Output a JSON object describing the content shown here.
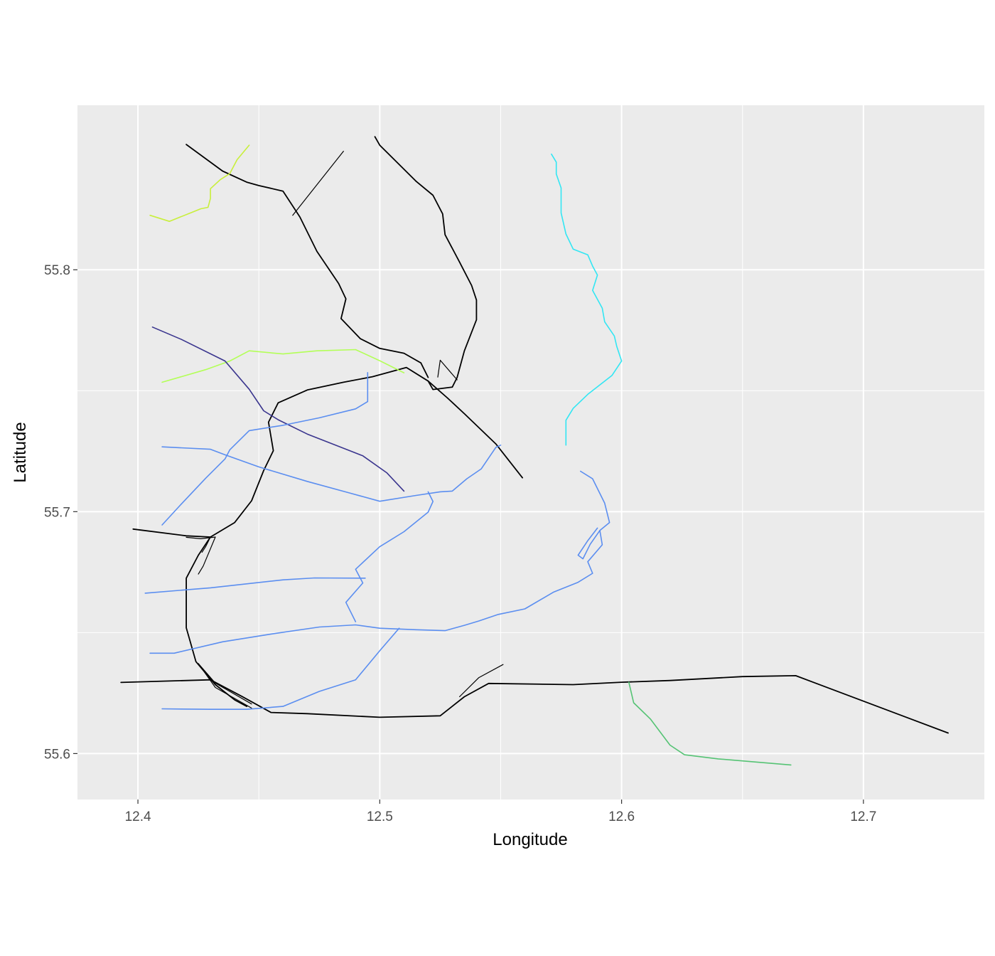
{
  "axes": {
    "xlabel": "Longitude",
    "ylabel": "Latitude",
    "x_ticks": [
      {
        "value": 12.4,
        "label": "12.4"
      },
      {
        "value": 12.5,
        "label": "12.5"
      },
      {
        "value": 12.6,
        "label": "12.6"
      },
      {
        "value": 12.7,
        "label": "12.7"
      }
    ],
    "y_ticks": [
      {
        "value": 55.6,
        "label": "55.6"
      },
      {
        "value": 55.7,
        "label": "55.7"
      },
      {
        "value": 55.8,
        "label": "55.8"
      }
    ],
    "x_minor": [
      12.45,
      12.55,
      12.65
    ],
    "y_minor": [
      55.65,
      55.75
    ],
    "xlim": [
      12.375,
      12.75
    ],
    "ylim": [
      55.581,
      55.868
    ],
    "grid": true,
    "panel_color": "#ebebeb",
    "grid_color": "#ffffff"
  },
  "routes": [
    {
      "color": "#000000",
      "width": 1.8,
      "points": [
        [
          12.393,
          55.6294
        ],
        [
          12.43,
          55.6305
        ],
        [
          12.443,
          55.6236
        ],
        [
          12.455,
          55.617
        ],
        [
          12.47,
          55.6165
        ],
        [
          12.5,
          55.615
        ],
        [
          12.525,
          55.6156
        ],
        [
          12.535,
          55.6235
        ],
        [
          12.545,
          55.629
        ],
        [
          12.58,
          55.6285
        ],
        [
          12.6,
          55.6295
        ],
        [
          12.62,
          55.6302
        ],
        [
          12.65,
          55.6318
        ],
        [
          12.672,
          55.6322
        ],
        [
          12.735,
          55.6085
        ]
      ]
    },
    {
      "color": "#000000",
      "width": 1.2,
      "points": [
        [
          12.533,
          55.6235
        ],
        [
          12.541,
          55.6314
        ],
        [
          12.551,
          55.6368
        ]
      ]
    },
    {
      "color": "#000000",
      "width": 1.8,
      "points": [
        [
          12.398,
          55.6928
        ],
        [
          12.42,
          55.69
        ],
        [
          12.43,
          55.6895
        ],
        [
          12.44,
          55.6955
        ],
        [
          12.447,
          55.7045
        ],
        [
          12.452,
          55.717
        ],
        [
          12.456,
          55.7252
        ],
        [
          12.454,
          55.737
        ],
        [
          12.458,
          55.745
        ],
        [
          12.47,
          55.7503
        ],
        [
          12.485,
          55.7535
        ],
        [
          12.497,
          55.7558
        ],
        [
          12.511,
          55.7596
        ],
        [
          12.52,
          55.754
        ],
        [
          12.528,
          55.747
        ],
        [
          12.535,
          55.7405
        ],
        [
          12.548,
          55.728
        ],
        [
          12.559,
          55.714
        ]
      ]
    },
    {
      "color": "#000000",
      "width": 1.8,
      "points": [
        [
          12.43,
          55.6895
        ],
        [
          12.425,
          55.682
        ],
        [
          12.42,
          55.6725
        ],
        [
          12.42,
          55.652
        ],
        [
          12.424,
          55.638
        ],
        [
          12.432,
          55.6285
        ],
        [
          12.44,
          55.6222
        ],
        [
          12.445,
          55.6195
        ]
      ]
    },
    {
      "color": "#000000",
      "width": 1.8,
      "points": [
        [
          12.498,
          55.855
        ],
        [
          12.5,
          55.8515
        ],
        [
          12.515,
          55.8366
        ],
        [
          12.522,
          55.8308
        ],
        [
          12.526,
          55.8231
        ],
        [
          12.527,
          55.8145
        ],
        [
          12.533,
          55.8032
        ],
        [
          12.538,
          55.7935
        ],
        [
          12.54,
          55.7875
        ],
        [
          12.54,
          55.7793
        ],
        [
          12.535,
          55.7665
        ],
        [
          12.532,
          55.7555
        ],
        [
          12.53,
          55.7515
        ],
        [
          12.522,
          55.7505
        ],
        [
          12.52,
          55.754
        ]
      ]
    },
    {
      "color": "#000000",
      "width": 1.8,
      "points": [
        [
          12.42,
          55.8518
        ],
        [
          12.435,
          55.8408
        ],
        [
          12.445,
          55.8362
        ],
        [
          12.45,
          55.8348
        ],
        [
          12.46,
          55.8325
        ],
        [
          12.467,
          55.8218
        ],
        [
          12.474,
          55.8076
        ],
        [
          12.483,
          55.7943
        ],
        [
          12.486,
          55.788
        ],
        [
          12.484,
          55.7798
        ],
        [
          12.492,
          55.7715
        ],
        [
          12.5,
          55.7675
        ],
        [
          12.51,
          55.7655
        ],
        [
          12.517,
          55.7615
        ],
        [
          12.52,
          55.7555
        ]
      ]
    },
    {
      "color": "#000000",
      "width": 1.2,
      "points": [
        [
          12.464,
          55.8225
        ],
        [
          12.485,
          55.849
        ]
      ]
    },
    {
      "color": "#000000",
      "width": 1.2,
      "points": [
        [
          12.42,
          55.6894
        ],
        [
          12.426,
          55.6888
        ],
        [
          12.432,
          55.6895
        ],
        [
          12.427,
          55.6775
        ],
        [
          12.425,
          55.6742
        ]
      ]
    },
    {
      "color": "#000000",
      "width": 1.2,
      "points": [
        [
          12.43,
          55.6895
        ],
        [
          12.428,
          55.6855
        ],
        [
          12.4265,
          55.6832
        ]
      ]
    },
    {
      "color": "#000000",
      "width": 1.2,
      "points": [
        [
          12.425,
          55.6372
        ],
        [
          12.432,
          55.6291
        ],
        [
          12.447,
          55.6205
        ]
      ]
    },
    {
      "color": "#000000",
      "width": 1.2,
      "points": [
        [
          12.425,
          55.6372
        ],
        [
          12.432,
          55.6273
        ],
        [
          12.447,
          55.6188
        ]
      ]
    },
    {
      "color": "#000000",
      "width": 1.2,
      "points": [
        [
          12.524,
          55.7556
        ],
        [
          12.525,
          55.7626
        ],
        [
          12.532,
          55.7545
        ]
      ]
    },
    {
      "color": "#c8ef3b",
      "width": 1.6,
      "points": [
        [
          12.405,
          55.8225
        ],
        [
          12.413,
          55.82
        ],
        [
          12.422,
          55.8236
        ],
        [
          12.426,
          55.8252
        ],
        [
          12.429,
          55.8258
        ],
        [
          12.43,
          55.8295
        ],
        [
          12.43,
          55.8335
        ],
        [
          12.434,
          55.8372
        ],
        [
          12.438,
          55.8398
        ],
        [
          12.441,
          55.8455
        ],
        [
          12.446,
          55.8515
        ]
      ]
    },
    {
      "color": "#b3ff57",
      "width": 1.6,
      "points": [
        [
          12.41,
          55.7535
        ],
        [
          12.428,
          55.7587
        ],
        [
          12.438,
          55.7623
        ],
        [
          12.446,
          55.7665
        ],
        [
          12.46,
          55.7652
        ],
        [
          12.474,
          55.7665
        ],
        [
          12.49,
          55.767
        ],
        [
          12.5,
          55.7624
        ],
        [
          12.51,
          55.7574
        ]
      ]
    },
    {
      "color": "#3a358e",
      "width": 1.6,
      "points": [
        [
          12.406,
          55.7763
        ],
        [
          12.418,
          55.7712
        ],
        [
          12.436,
          55.7623
        ],
        [
          12.446,
          55.7506
        ],
        [
          12.452,
          55.7417
        ],
        [
          12.458,
          55.738
        ],
        [
          12.47,
          55.7321
        ],
        [
          12.493,
          55.7231
        ],
        [
          12.503,
          55.716
        ],
        [
          12.51,
          55.7085
        ]
      ]
    },
    {
      "color": "#32e6f3",
      "width": 1.6,
      "points": [
        [
          12.571,
          55.8478
        ],
        [
          12.573,
          55.8445
        ],
        [
          12.573,
          55.8396
        ],
        [
          12.575,
          55.8338
        ],
        [
          12.575,
          55.8235
        ],
        [
          12.577,
          55.8148
        ],
        [
          12.58,
          55.8085
        ],
        [
          12.586,
          55.8062
        ],
        [
          12.588,
          55.8015
        ],
        [
          12.59,
          55.7978
        ],
        [
          12.588,
          55.7915
        ],
        [
          12.592,
          55.7841
        ],
        [
          12.593,
          55.7785
        ],
        [
          12.597,
          55.7726
        ],
        [
          12.598,
          55.7683
        ],
        [
          12.6,
          55.7623
        ],
        [
          12.596,
          55.7563
        ],
        [
          12.591,
          55.7524
        ],
        [
          12.586,
          55.7485
        ],
        [
          12.58,
          55.7427
        ],
        [
          12.577,
          55.7378
        ],
        [
          12.577,
          55.7275
        ]
      ]
    },
    {
      "color": "#5b8ef0",
      "width": 1.6,
      "points": [
        [
          12.41,
          55.6945
        ],
        [
          12.418,
          55.7032
        ],
        [
          12.428,
          55.7138
        ],
        [
          12.436,
          55.7218
        ],
        [
          12.438,
          55.7256
        ],
        [
          12.446,
          55.7335
        ],
        [
          12.46,
          55.7357
        ],
        [
          12.475,
          55.7388
        ],
        [
          12.49,
          55.7425
        ],
        [
          12.495,
          55.7455
        ],
        [
          12.495,
          55.7575
        ]
      ]
    },
    {
      "color": "#5b8ef0",
      "width": 1.6,
      "points": [
        [
          12.41,
          55.7268
        ],
        [
          12.43,
          55.7258
        ],
        [
          12.436,
          55.7235
        ],
        [
          12.45,
          55.7185
        ],
        [
          12.47,
          55.7125
        ],
        [
          12.488,
          55.7076
        ],
        [
          12.5,
          55.7043
        ],
        [
          12.515,
          55.7067
        ],
        [
          12.525,
          55.7082
        ],
        [
          12.53,
          55.7085
        ],
        [
          12.536,
          55.7136
        ],
        [
          12.542,
          55.7177
        ],
        [
          12.548,
          55.7266
        ],
        [
          12.55,
          55.7275
        ]
      ]
    },
    {
      "color": "#5b8ef0",
      "width": 1.6,
      "points": [
        [
          12.52,
          55.7082
        ],
        [
          12.522,
          55.7042
        ],
        [
          12.52,
          55.6998
        ],
        [
          12.51,
          55.6917
        ],
        [
          12.5,
          55.6855
        ],
        [
          12.49,
          55.6762
        ],
        [
          12.493,
          55.6705
        ],
        [
          12.486,
          55.6625
        ],
        [
          12.49,
          55.6545
        ]
      ]
    },
    {
      "color": "#5b8ef0",
      "width": 1.6,
      "points": [
        [
          12.403,
          55.6663
        ],
        [
          12.43,
          55.6685
        ],
        [
          12.46,
          55.6718
        ],
        [
          12.473,
          55.6726
        ],
        [
          12.494,
          55.6725
        ]
      ]
    },
    {
      "color": "#5b8ef0",
      "width": 1.6,
      "points": [
        [
          12.405,
          55.6415
        ],
        [
          12.415,
          55.6415
        ],
        [
          12.435,
          55.6462
        ],
        [
          12.455,
          55.6494
        ],
        [
          12.475,
          55.6523
        ],
        [
          12.49,
          55.6532
        ],
        [
          12.5,
          55.6518
        ],
        [
          12.515,
          55.6512
        ],
        [
          12.527,
          55.6508
        ],
        [
          12.535,
          55.653
        ],
        [
          12.541,
          55.6548
        ],
        [
          12.549,
          55.6575
        ],
        [
          12.56,
          55.6598
        ],
        [
          12.572,
          55.6668
        ],
        [
          12.582,
          55.6708
        ],
        [
          12.588,
          55.6745
        ],
        [
          12.586,
          55.6793
        ],
        [
          12.592,
          55.6863
        ],
        [
          12.591,
          55.6922
        ],
        [
          12.595,
          55.6955
        ],
        [
          12.593,
          55.7035
        ],
        [
          12.588,
          55.7136
        ],
        [
          12.583,
          55.7167
        ]
      ]
    },
    {
      "color": "#5b8ef0",
      "width": 1.6,
      "points": [
        [
          12.591,
          55.6922
        ],
        [
          12.587,
          55.6865
        ],
        [
          12.584,
          55.6805
        ],
        [
          12.582,
          55.682
        ],
        [
          12.586,
          55.688
        ],
        [
          12.59,
          55.6932
        ]
      ]
    },
    {
      "color": "#5b8ef0",
      "width": 1.6,
      "points": [
        [
          12.41,
          55.6185
        ],
        [
          12.43,
          55.6183
        ],
        [
          12.445,
          55.6183
        ],
        [
          12.46,
          55.6195
        ],
        [
          12.475,
          55.6257
        ],
        [
          12.49,
          55.6305
        ],
        [
          12.5,
          55.6425
        ],
        [
          12.508,
          55.6518
        ]
      ]
    },
    {
      "color": "#55c374",
      "width": 1.6,
      "points": [
        [
          12.603,
          55.6295
        ],
        [
          12.605,
          55.621
        ],
        [
          12.612,
          55.6142
        ],
        [
          12.62,
          55.6035
        ],
        [
          12.626,
          55.5995
        ],
        [
          12.64,
          55.5978
        ],
        [
          12.67,
          55.5953
        ]
      ]
    }
  ]
}
